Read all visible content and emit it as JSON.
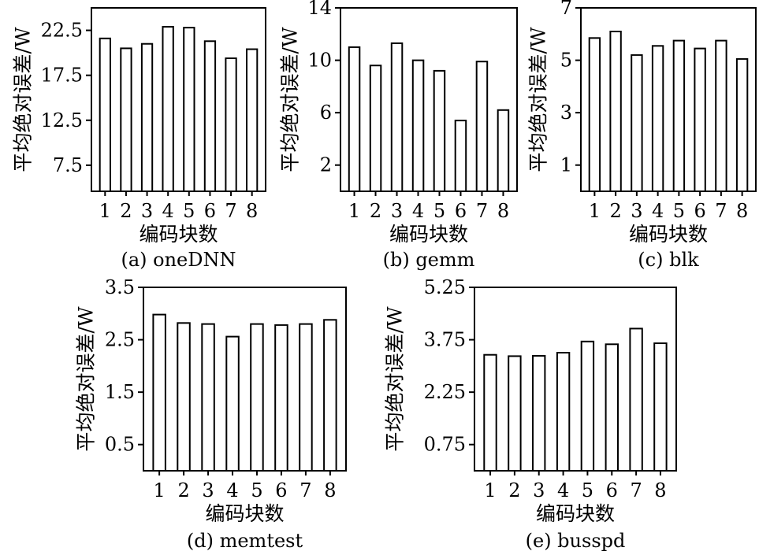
{
  "chart_data": [
    {
      "type": "bar",
      "caption": "(a) oneDNN",
      "xlabel": "编码块数",
      "ylabel": "平均绝对误差/W",
      "categories": [
        "1",
        "2",
        "3",
        "4",
        "5",
        "6",
        "7",
        "8"
      ],
      "values": [
        21.6,
        20.5,
        21.0,
        22.9,
        22.8,
        21.3,
        19.4,
        20.4
      ],
      "ylim": [
        4.6,
        25.0
      ],
      "yticks": [
        7.5,
        12.5,
        17.5,
        22.5
      ],
      "ytick_labels": [
        "7.5",
        "12.5",
        "17.5",
        "22.5"
      ]
    },
    {
      "type": "bar",
      "caption": "(b) gemm",
      "xlabel": "编码块数",
      "ylabel": "平均绝对误差/W",
      "categories": [
        "1",
        "2",
        "3",
        "4",
        "5",
        "6",
        "7",
        "8"
      ],
      "values": [
        11.0,
        9.6,
        11.3,
        10.0,
        9.2,
        5.4,
        9.9,
        6.2
      ],
      "ylim": [
        0,
        14
      ],
      "yticks": [
        2,
        6,
        10,
        14
      ],
      "ytick_labels": [
        "2",
        "6",
        "10",
        "14"
      ]
    },
    {
      "type": "bar",
      "caption": "(c) blk",
      "xlabel": "编码块数",
      "ylabel": "平均绝对误差/W",
      "categories": [
        "1",
        "2",
        "3",
        "4",
        "5",
        "6",
        "7",
        "8"
      ],
      "values": [
        5.85,
        6.1,
        5.2,
        5.55,
        5.75,
        5.45,
        5.75,
        5.05
      ],
      "ylim": [
        0,
        7
      ],
      "yticks": [
        1,
        3,
        5,
        7
      ],
      "ytick_labels": [
        "1",
        "3",
        "5",
        "7"
      ]
    },
    {
      "type": "bar",
      "caption": "(d) memtest",
      "xlabel": "编码块数",
      "ylabel": "平均绝对误差/W",
      "categories": [
        "1",
        "2",
        "3",
        "4",
        "5",
        "6",
        "7",
        "8"
      ],
      "values": [
        2.98,
        2.82,
        2.8,
        2.56,
        2.8,
        2.78,
        2.8,
        2.88
      ],
      "ylim": [
        0,
        3.5
      ],
      "yticks": [
        0.5,
        1.5,
        2.5,
        3.5
      ],
      "ytick_labels": [
        "0.5",
        "1.5",
        "2.5",
        "3.5"
      ]
    },
    {
      "type": "bar",
      "caption": "(e) busspd",
      "xlabel": "编码块数",
      "ylabel": "平均绝对误差/W",
      "categories": [
        "1",
        "2",
        "3",
        "4",
        "5",
        "6",
        "7",
        "8"
      ],
      "values": [
        3.32,
        3.28,
        3.29,
        3.38,
        3.7,
        3.62,
        4.07,
        3.65
      ],
      "ylim": [
        0,
        5.25
      ],
      "yticks": [
        0.75,
        2.25,
        3.75,
        5.25
      ],
      "ytick_labels": [
        "0.75",
        "2.25",
        "3.75",
        "5.25"
      ]
    }
  ]
}
